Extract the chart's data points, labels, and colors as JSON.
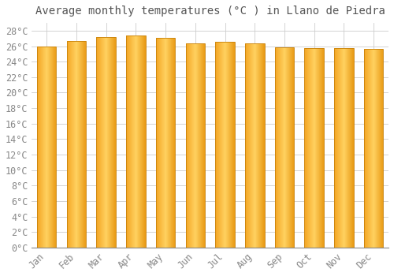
{
  "title": "Average monthly temperatures (°C ) in Llano de Piedra",
  "months": [
    "Jan",
    "Feb",
    "Mar",
    "Apr",
    "May",
    "Jun",
    "Jul",
    "Aug",
    "Sep",
    "Oct",
    "Nov",
    "Dec"
  ],
  "temperatures": [
    26.0,
    26.7,
    27.2,
    27.4,
    27.1,
    26.4,
    26.6,
    26.4,
    25.8,
    25.7,
    25.7,
    25.6
  ],
  "bar_color_left": "#F5A623",
  "bar_color_center": "#FFD060",
  "bar_color_right": "#E89520",
  "ylim": [
    0,
    29
  ],
  "ytick_step": 2,
  "bg_color": "#ffffff",
  "grid_color": "#cccccc",
  "title_fontsize": 10,
  "tick_fontsize": 8.5,
  "bar_edge_color": "#C8820A"
}
